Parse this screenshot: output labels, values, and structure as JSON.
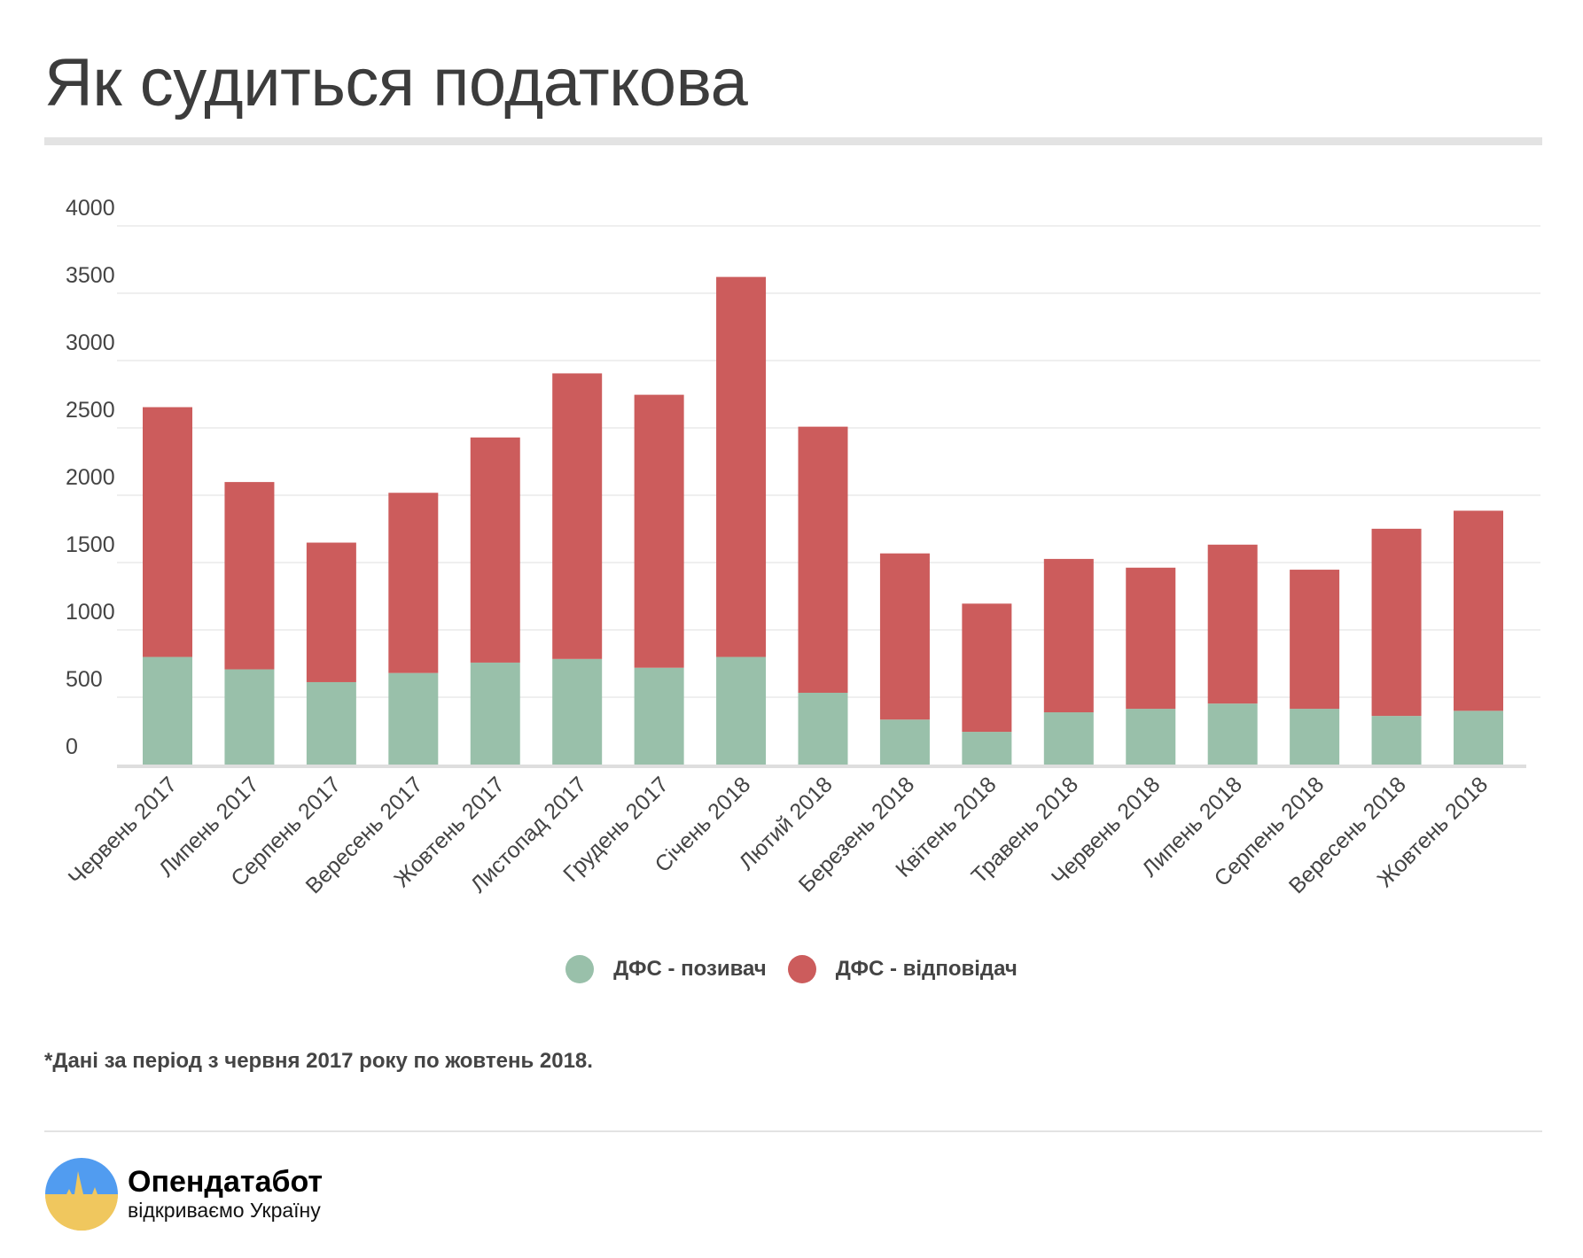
{
  "title": "Як судиться податкова",
  "chart_data": {
    "type": "bar",
    "stacked": true,
    "categories": [
      "Червень 2017",
      "Липень 2017",
      "Серпень 2017",
      "Вересень 2017",
      "Жовтень 2017",
      "Листопад 2017",
      "Грудень 2017",
      "Січень 2018",
      "Лютий 2018",
      "Березень 2018",
      "Квітень 2018",
      "Травень 2018",
      "Червень 2018",
      "Липень 2018",
      "Серпень 2018",
      "Вересень 2018",
      "Жовтень 2018"
    ],
    "series": [
      {
        "name": "ДФС - позивач",
        "color": "#99c0aa",
        "values": [
          799,
          707,
          612,
          680,
          757,
          784,
          719,
          799,
          533,
          334,
          243,
          388,
          414,
          453,
          414,
          361,
          399
        ]
      },
      {
        "name": "ДФС - відповідач",
        "color": "#cc5c5c",
        "values": [
          1855,
          1391,
          1036,
          1338,
          1672,
          2121,
          2027,
          2822,
          1976,
          1234,
          952,
          1139,
          1048,
          1180,
          1033,
          1390,
          1486
        ]
      }
    ],
    "ylim": [
      0,
      4000
    ],
    "yticks": [
      "0",
      "500",
      "1000",
      "1500",
      "2000",
      "2500",
      "3000",
      "3500",
      "4000"
    ],
    "grid": true,
    "legend": "bottom"
  },
  "footnote": "*Дані за період з червня 2017 року по жовтень 2018.",
  "logo": {
    "name": "Опендатабот",
    "tagline": "відкриваємо Україну"
  }
}
